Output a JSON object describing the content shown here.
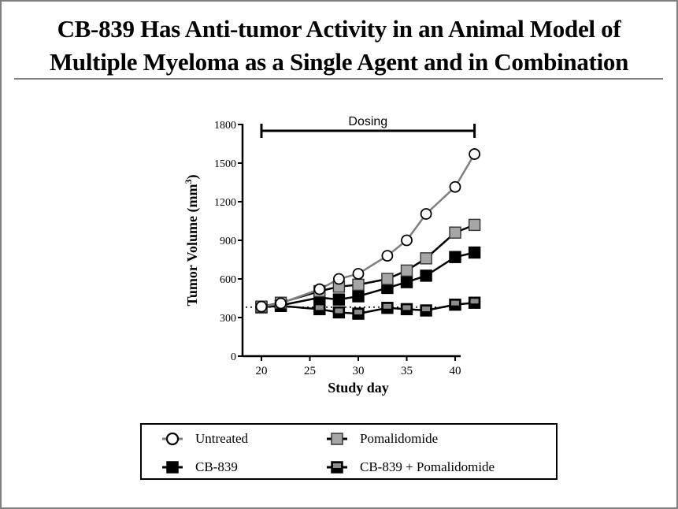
{
  "page": {
    "title_line1": "CB-839 Has Anti-tumor Activity in an Animal Model of",
    "title_line2": "Multiple Myeloma as a Single Agent and in Combination"
  },
  "chart_data": {
    "type": "line",
    "title": "",
    "xlabel": "Study day",
    "ylabel": "Tumor Volume (mm3)",
    "ylabel_main": "Tumor Volume (mm",
    "ylabel_sup": "3",
    "ylabel_close": ")",
    "xlim": [
      18,
      42
    ],
    "ylim": [
      0,
      1800
    ],
    "xticks": [
      20,
      25,
      30,
      35,
      40
    ],
    "yticks": [
      0,
      300,
      600,
      900,
      1200,
      1500,
      1800
    ],
    "grid": false,
    "annotation": {
      "text": "Dosing",
      "x_start": 20,
      "x_end": 42
    },
    "baseline": {
      "value": 380,
      "style": "dotted"
    },
    "x": [
      20,
      22,
      26,
      28,
      30,
      33,
      35,
      37,
      40,
      42
    ],
    "series": [
      {
        "name": "Untreated",
        "marker": "circle",
        "fill": "#ffffff",
        "line": "#7f7f7f",
        "values": [
          385,
          410,
          520,
          600,
          640,
          780,
          900,
          1105,
          1315,
          1570
        ]
      },
      {
        "name": "Pomalidomide",
        "marker": "square",
        "fill": "#a6a6a6",
        "line": "#000000",
        "values": [
          385,
          415,
          505,
          540,
          555,
          600,
          665,
          760,
          960,
          1020
        ]
      },
      {
        "name": "CB-839",
        "marker": "square",
        "fill": "#000000",
        "line": "#000000",
        "values": [
          380,
          395,
          455,
          440,
          465,
          530,
          575,
          625,
          770,
          805
        ]
      },
      {
        "name": "CB-839 + Pomalidomide",
        "marker": "half-square",
        "fill": "#8c8c8c",
        "line": "#000000",
        "values": [
          380,
          390,
          365,
          340,
          330,
          375,
          365,
          355,
          400,
          415
        ]
      }
    ],
    "legend_position": "bottom"
  },
  "legend": {
    "items": [
      {
        "label": "Untreated"
      },
      {
        "label": "Pomalidomide"
      },
      {
        "label": "CB-839"
      },
      {
        "label": "CB-839 + Pomalidomide"
      }
    ]
  }
}
